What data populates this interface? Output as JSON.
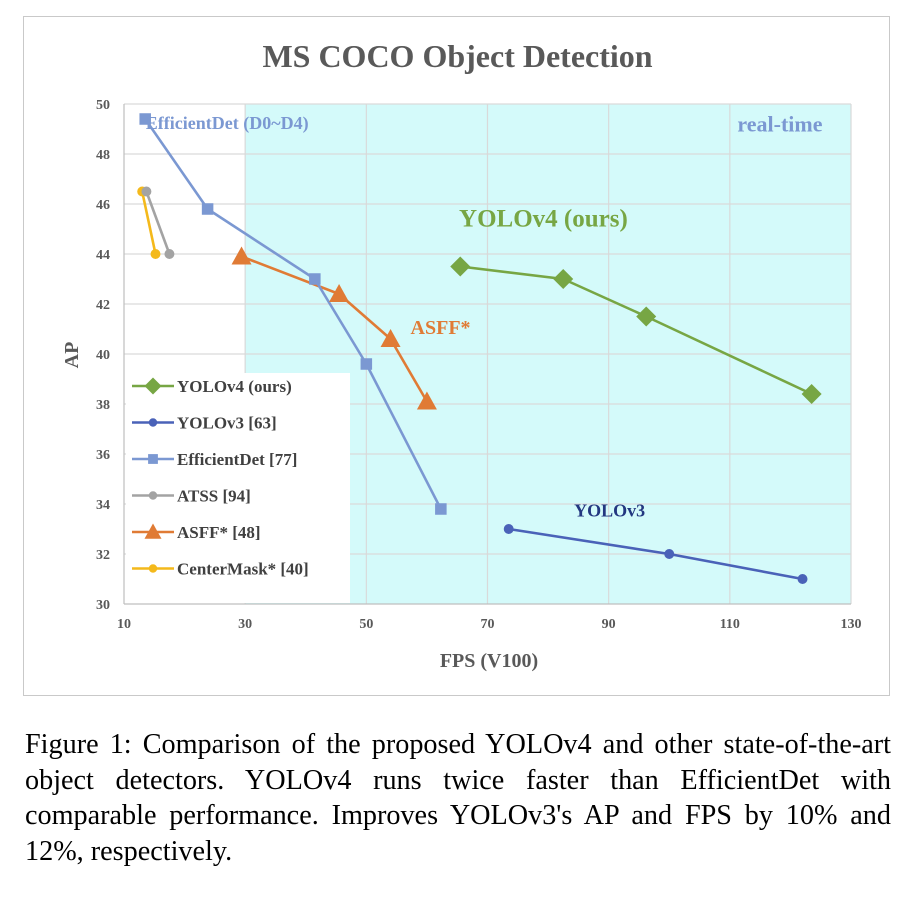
{
  "caption": "Figure 1: Comparison of the proposed YOLOv4 and other state-of-the-art object detectors. YOLOv4 runs twice faster than EfficientDet with comparable performance. Improves YOLOv3's AP and FPS by 10% and 12%, respectively.",
  "chart_data": {
    "type": "line",
    "title": "MS COCO Object Detection",
    "xlabel": "FPS (V100)",
    "ylabel": "AP",
    "xlim": [
      10,
      130
    ],
    "ylim": [
      30,
      50
    ],
    "x_ticks": [
      10,
      30,
      50,
      70,
      90,
      110,
      130
    ],
    "y_ticks": [
      30,
      32,
      34,
      36,
      38,
      40,
      42,
      44,
      46,
      48,
      50
    ],
    "grid": true,
    "legend_position": "bottom-left",
    "realtime_region": {
      "x_from": 30,
      "label": "real-time",
      "color": "#d4fafa"
    },
    "series": [
      {
        "name": "YOLOv4 (ours)",
        "color": "#77a644",
        "marker": "diamond",
        "x": [
          65.5,
          82.5,
          96.2,
          123.5
        ],
        "y": [
          43.5,
          43.0,
          41.5,
          38.4
        ]
      },
      {
        "name": "YOLOv3 [63]",
        "color": "#4a62b8",
        "marker": "circle",
        "x": [
          73.5,
          100,
          122
        ],
        "y": [
          33.0,
          32.0,
          31.0
        ]
      },
      {
        "name": "EfficientDet [77]",
        "color": "#7b98d2",
        "marker": "square",
        "x": [
          13.5,
          23.8,
          41.5,
          50,
          62.3
        ],
        "y": [
          49.4,
          45.8,
          43.0,
          39.6,
          33.8
        ]
      },
      {
        "name": "ATSS [94]",
        "color": "#a3a3a3",
        "marker": "circle",
        "x": [
          13.7,
          17.5
        ],
        "y": [
          46.5,
          44.0
        ]
      },
      {
        "name": "ASFF* [48]",
        "color": "#e07b35",
        "marker": "triangle",
        "x": [
          29.4,
          45.5,
          54,
          60
        ],
        "y": [
          43.9,
          42.4,
          40.6,
          38.1
        ]
      },
      {
        "name": "CenterMask* [40]",
        "color": "#f4b91b",
        "marker": "circle",
        "x": [
          13,
          15.2
        ],
        "y": [
          46.5,
          44.0
        ]
      }
    ],
    "annotations": [
      {
        "text": "EfficientDet (D0~D4)",
        "x": 13.6,
        "y": 49.0,
        "color": "#7b98d2"
      },
      {
        "text": "real-time",
        "x": 125.3,
        "y": 48.9,
        "color": "#7b98d2"
      },
      {
        "text": "YOLOv4 (ours)",
        "x": 65.3,
        "y": 45.1,
        "color": "#77a644"
      },
      {
        "text": "ASFF*",
        "x": 57.3,
        "y": 40.8,
        "color": "#e07b35"
      },
      {
        "text": "YOLOv3",
        "x": 84.3,
        "y": 33.5,
        "color": "#233780"
      }
    ]
  }
}
